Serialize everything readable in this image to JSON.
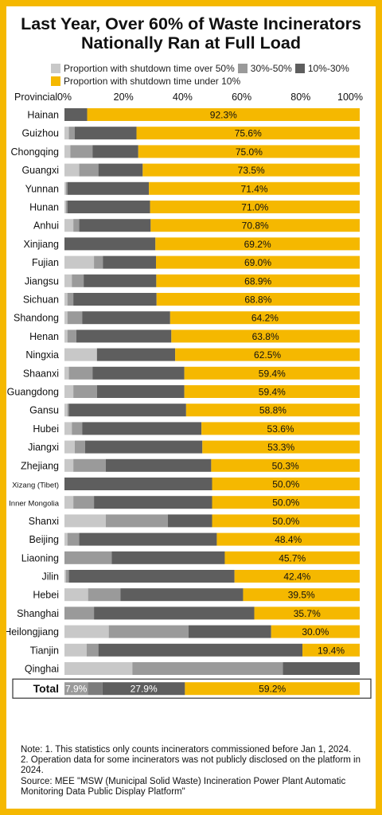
{
  "title_line1": "Last Year, Over 60% of Waste Incinerators",
  "title_line2": "Nationally Ran at Full Load",
  "legend": [
    {
      "label": "Proportion with shutdown time over 50%",
      "color": "#c8c8c8"
    },
    {
      "label": "30%-50%",
      "color": "#9a9a9a"
    },
    {
      "label": "10%-30%",
      "color": "#5e5e5e"
    },
    {
      "label": "Proportion with shutdown time under 10%",
      "color": "#f5b800"
    }
  ],
  "chart_data": {
    "type": "bar",
    "orientation": "horizontal",
    "stacked": true,
    "category_header": "Provincial",
    "xlim": [
      0,
      100
    ],
    "x_ticks": [
      "0%",
      "20%",
      "40%",
      "60%",
      "80%",
      "100%"
    ],
    "categories": [
      "Hainan",
      "Guizhou",
      "Chongqing",
      "Guangxi",
      "Yunnan",
      "Hunan",
      "Anhui",
      "Xinjiang",
      "Fujian",
      "Jiangsu",
      "Sichuan",
      "Shandong",
      "Henan",
      "Ningxia",
      "Shaanxi",
      "Guangdong",
      "Gansu",
      "Hubei",
      "Jiangxi",
      "Zhejiang",
      "Xizang (Tibet)",
      "Inner Mongolia",
      "Shanxi",
      "Beijing",
      "Liaoning",
      "Jilin",
      "Hebei",
      "Shanghai",
      "Heilongjiang",
      "Tianjin",
      "Qinghai"
    ],
    "series": [
      {
        "name": "Proportion with shutdown time over 50%",
        "color": "#c8c8c8",
        "values": [
          0,
          1.5,
          2,
          5,
          0.5,
          0.5,
          3,
          0,
          10,
          2.5,
          1,
          1,
          1,
          11,
          1.5,
          3,
          1,
          2.5,
          3.5,
          3,
          0,
          3,
          14,
          1,
          0,
          0.5,
          8,
          0,
          15,
          7.5,
          23
        ]
      },
      {
        "name": "30%-50%",
        "color": "#9a9a9a",
        "values": [
          0,
          2,
          7.5,
          6.5,
          0.5,
          0.5,
          2,
          0,
          3,
          4,
          2,
          5,
          3,
          0,
          8,
          8,
          0.5,
          3.5,
          3.5,
          11,
          0,
          7,
          21,
          4,
          16,
          1,
          11,
          10,
          27,
          4,
          51
        ]
      },
      {
        "name": "10%-30%",
        "color": "#5e5e5e",
        "values": [
          7.7,
          20.9,
          15.5,
          15,
          27.6,
          28,
          24.2,
          30.8,
          18,
          24.6,
          28.2,
          29.8,
          32.2,
          26.5,
          31.1,
          29.6,
          39.7,
          40.4,
          39.7,
          35.7,
          50,
          40,
          15,
          46.6,
          38.3,
          56.1,
          41.5,
          54.3,
          28,
          69.1,
          26
        ]
      },
      {
        "name": "Proportion with shutdown time under 10%",
        "color": "#f5b800",
        "values": [
          92.3,
          75.6,
          75.0,
          73.5,
          71.4,
          71.0,
          70.8,
          69.2,
          69.0,
          68.9,
          68.8,
          64.2,
          63.8,
          62.5,
          59.4,
          59.4,
          58.8,
          53.6,
          53.3,
          50.3,
          50.0,
          50.0,
          50.0,
          48.4,
          45.7,
          42.4,
          39.5,
          35.7,
          30.0,
          19.4,
          0
        ]
      }
    ],
    "data_labels": [
      "92.3%",
      "75.6%",
      "75.0%",
      "73.5%",
      "71.4%",
      "71.0%",
      "70.8%",
      "69.2%",
      "69.0%",
      "68.9%",
      "68.8%",
      "64.2%",
      "63.8%",
      "62.5%",
      "59.4%",
      "59.4%",
      "58.8%",
      "53.6%",
      "53.3%",
      "50.3%",
      "50.0%",
      "50.0%",
      "50.0%",
      "48.4%",
      "45.7%",
      "42.4%",
      "39.5%",
      "35.7%",
      "30.0%",
      "19.4%",
      ""
    ],
    "total": {
      "label": "Total",
      "values": [
        7.9,
        5,
        27.9,
        59.2
      ],
      "labels": [
        "7.9%",
        "",
        "27.9%",
        "59.2%"
      ]
    }
  },
  "notes": [
    "Note: 1. This statistics only counts incinerators commissioned before Jan 1, 2024.",
    "2. Operation data for some incinerators was not publicly disclosed on the platform in 2024.",
    "Source: MEE \"MSW (Municipal Solid Waste) Incineration Power Plant Automatic Monitoring Data Public Display Platform\""
  ]
}
